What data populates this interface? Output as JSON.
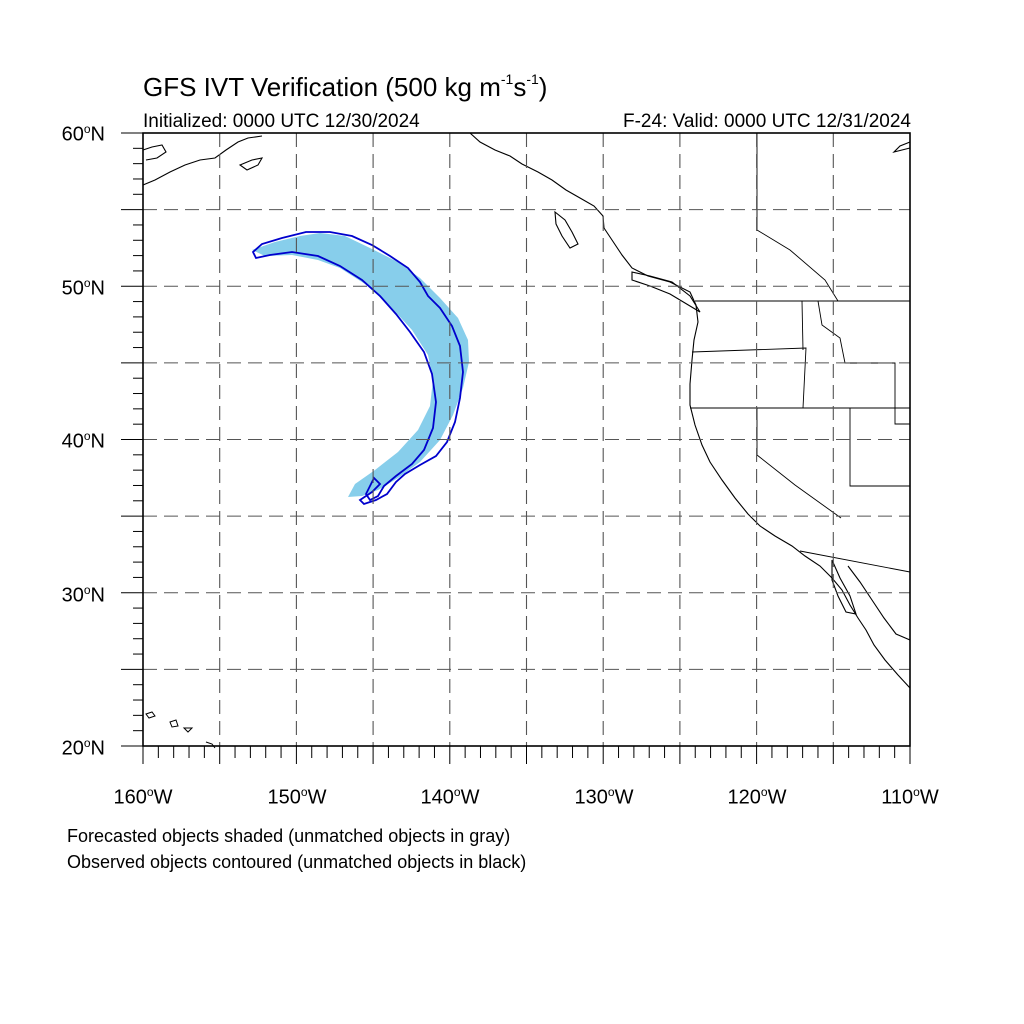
{
  "title": {
    "main": "GFS IVT Verification (500 kg m",
    "exp1": "-1",
    "mid": "s",
    "exp2": "-1",
    "end": ")"
  },
  "initialized": "Initialized: 0000 UTC 12/30/2024",
  "valid": "F-24: Valid: 0000 UTC 12/31/2024",
  "map": {
    "lon_range": [
      -160,
      -110
    ],
    "lat_range": [
      20,
      60
    ],
    "lat_labels": [
      "60",
      "50",
      "40",
      "30",
      "20"
    ],
    "lon_labels": [
      "160",
      "150",
      "140",
      "130",
      "120",
      "110"
    ],
    "degree_symbol": "o",
    "lat_suffix": "N",
    "lon_suffix": "W",
    "grid": "dashed every 5 degrees",
    "colors": {
      "forecast_object": "#87ceeb",
      "observed_contour": "#0000cd",
      "coastline": "#000000",
      "grid": "#555555"
    }
  },
  "notes": [
    "Forecasted objects shaded (unmatched objects in gray)",
    "Observed objects contoured (unmatched objects in black)"
  ]
}
